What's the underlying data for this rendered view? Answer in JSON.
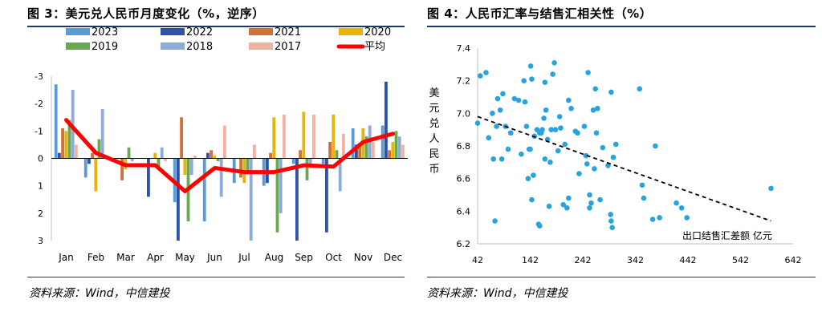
{
  "left": {
    "title": "图 3：美元兑人民币月度变化（%，逆序）",
    "source": "资料来源：Wind，中信建投",
    "chart_data": {
      "type": "bar",
      "categories": [
        "Jan",
        "Feb",
        "Mar",
        "Apr",
        "May",
        "Jun",
        "Jul",
        "Aug",
        "Sep",
        "Oct",
        "Nov",
        "Dec"
      ],
      "y_reversed": true,
      "ylim": [
        -3,
        3
      ],
      "yticks": [
        -3,
        -2,
        -1,
        0,
        1,
        2,
        3
      ],
      "grid": false,
      "legend_position": "top",
      "series": [
        {
          "name": "2023",
          "color": "#5b9bd5",
          "values": [
            -2.7,
            0.7,
            0.0,
            0.0,
            1.6,
            2.3,
            0.9,
            1.0,
            0.2,
            0.2,
            -1.1,
            -1.2
          ]
        },
        {
          "name": "2022",
          "color": "#2e52a5",
          "values": [
            -0.2,
            0.2,
            0.0,
            1.4,
            3.0,
            -0.2,
            0.0,
            0.9,
            3.0,
            2.7,
            -0.5,
            -2.8
          ]
        },
        {
          "name": "2021",
          "color": "#d0703a",
          "values": [
            -1.1,
            -0.2,
            0.8,
            0.0,
            -1.5,
            -0.3,
            0.7,
            -0.2,
            -0.3,
            -0.6,
            -0.5,
            -0.3
          ]
        },
        {
          "name": "2020",
          "color": "#e8b40a",
          "values": [
            -1.0,
            1.2,
            0.4,
            -0.2,
            0.6,
            -0.1,
            0.9,
            -1.5,
            -1.7,
            -1.6,
            -1.1,
            -0.6
          ]
        },
        {
          "name": "2019",
          "color": "#6aa84f",
          "values": [
            -1.4,
            -0.7,
            -0.4,
            0.3,
            2.3,
            0.1,
            0.5,
            2.7,
            0.8,
            -0.3,
            -0.8,
            -1.0
          ]
        },
        {
          "name": "2018",
          "color": "#8eaadb",
          "values": [
            -2.5,
            -1.8,
            0.1,
            -0.4,
            0.6,
            1.4,
            3.0,
            2.0,
            0.3,
            1.2,
            -1.2,
            -0.8
          ]
        },
        {
          "name": "2017",
          "color": "#f4b0a0",
          "values": [
            -0.5,
            -0.1,
            0.0,
            0.1,
            -0.1,
            -1.2,
            -0.5,
            -1.6,
            -1.6,
            -0.9,
            -0.6,
            -0.5
          ]
        },
        {
          "name": "平均",
          "color": "#ff0000",
          "type": "line",
          "values": [
            -1.4,
            -0.2,
            0.25,
            0.25,
            1.2,
            0.35,
            0.5,
            0.5,
            0.25,
            0.3,
            -0.6,
            -0.9
          ]
        }
      ]
    }
  },
  "right": {
    "title": "图 4：人民币汇率与结售汇相关性（%）",
    "source": "资料来源：Wind，中信建投",
    "chart_data": {
      "type": "scatter",
      "xlabel": "出口结售汇差额 亿元",
      "ylabel": "美元兑人民币",
      "xlim": [
        42,
        642
      ],
      "ylim": [
        6.2,
        7.4
      ],
      "xticks": [
        42,
        142,
        242,
        342,
        442,
        542,
        642
      ],
      "yticks": [
        6.2,
        6.4,
        6.6,
        6.8,
        7.0,
        7.2,
        7.4
      ],
      "grid": false,
      "point_color": "#29a3dc",
      "trend_line": {
        "style": "dashed",
        "color": "#000000",
        "from": [
          42,
          6.98
        ],
        "to": [
          600,
          6.34
        ]
      },
      "points": [
        [
          42,
          6.94
        ],
        [
          47,
          7.23
        ],
        [
          58,
          7.25
        ],
        [
          63,
          6.85
        ],
        [
          70,
          7.0
        ],
        [
          72,
          6.72
        ],
        [
          75,
          6.34
        ],
        [
          78,
          6.92
        ],
        [
          80,
          7.09
        ],
        [
          85,
          7.02
        ],
        [
          88,
          6.72
        ],
        [
          90,
          7.12
        ],
        [
          95,
          6.92
        ],
        [
          100,
          6.78
        ],
        [
          105,
          6.88
        ],
        [
          112,
          7.09
        ],
        [
          120,
          7.08
        ],
        [
          125,
          6.75
        ],
        [
          130,
          7.2
        ],
        [
          132,
          7.07
        ],
        [
          135,
          6.92
        ],
        [
          138,
          6.6
        ],
        [
          140,
          6.78
        ],
        [
          142,
          6.78
        ],
        [
          143,
          7.29
        ],
        [
          145,
          7.21
        ],
        [
          145,
          6.47
        ],
        [
          148,
          6.62
        ],
        [
          150,
          6.86
        ],
        [
          155,
          6.9
        ],
        [
          158,
          6.32
        ],
        [
          160,
          6.31
        ],
        [
          160,
          6.88
        ],
        [
          163,
          6.88
        ],
        [
          165,
          6.9
        ],
        [
          168,
          6.97
        ],
        [
          170,
          6.72
        ],
        [
          170,
          7.19
        ],
        [
          172,
          7.02
        ],
        [
          175,
          6.84
        ],
        [
          178,
          6.43
        ],
        [
          180,
          6.7
        ],
        [
          182,
          6.9
        ],
        [
          185,
          7.24
        ],
        [
          188,
          7.31
        ],
        [
          190,
          6.9
        ],
        [
          195,
          6.77
        ],
        [
          198,
          6.98
        ],
        [
          200,
          6.91
        ],
        [
          205,
          6.44
        ],
        [
          208,
          6.81
        ],
        [
          212,
          6.42
        ],
        [
          215,
          7.08
        ],
        [
          215,
          6.48
        ],
        [
          220,
          7.03
        ],
        [
          228,
          6.89
        ],
        [
          232,
          6.88
        ],
        [
          235,
          6.63
        ],
        [
          245,
          6.92
        ],
        [
          248,
          6.74
        ],
        [
          250,
          6.69
        ],
        [
          252,
          7.25
        ],
        [
          255,
          6.5
        ],
        [
          255,
          6.42
        ],
        [
          258,
          6.45
        ],
        [
          262,
          7.02
        ],
        [
          264,
          6.66
        ],
        [
          266,
          7.15
        ],
        [
          268,
          6.88
        ],
        [
          270,
          7.03
        ],
        [
          275,
          6.47
        ],
        [
          280,
          6.79
        ],
        [
          290,
          6.68
        ],
        [
          295,
          6.38
        ],
        [
          296,
          7.13
        ],
        [
          296,
          6.34
        ],
        [
          298,
          6.3
        ],
        [
          300,
          6.73
        ],
        [
          305,
          6.81
        ],
        [
          350,
          7.15
        ],
        [
          355,
          6.56
        ],
        [
          358,
          6.48
        ],
        [
          375,
          6.35
        ],
        [
          380,
          6.8
        ],
        [
          388,
          6.36
        ],
        [
          420,
          6.45
        ],
        [
          430,
          6.42
        ],
        [
          440,
          6.36
        ],
        [
          600,
          6.54
        ]
      ]
    }
  }
}
